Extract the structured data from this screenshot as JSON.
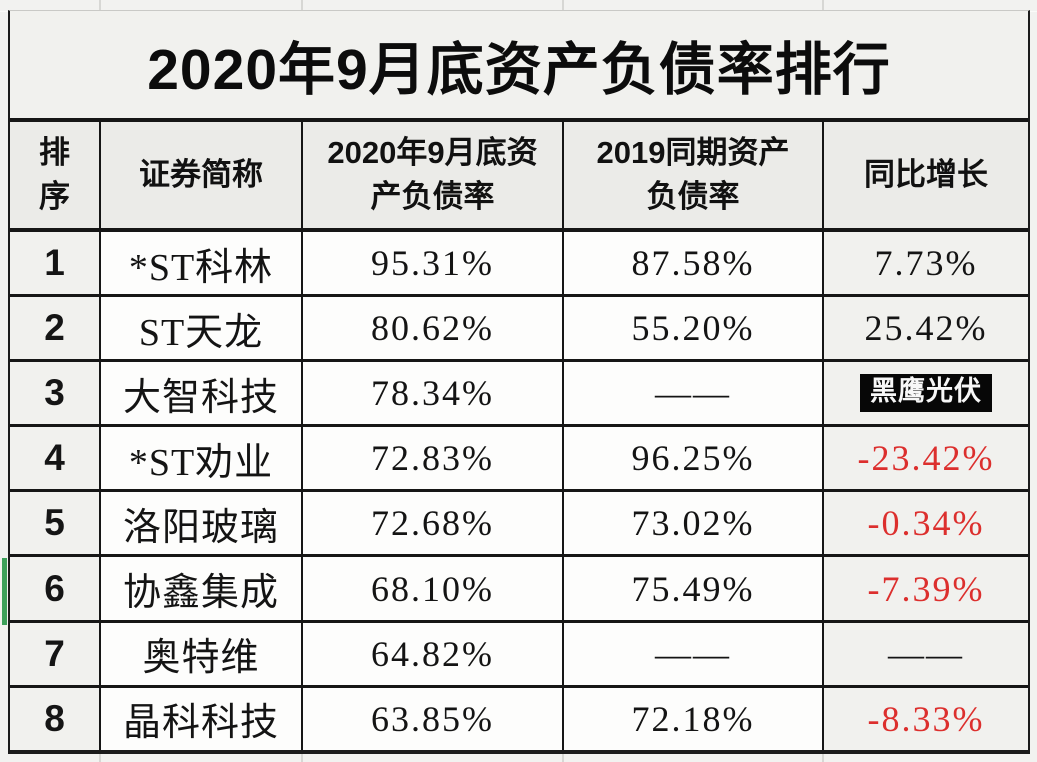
{
  "page": {
    "title": "2020年9月底资产负债率排行"
  },
  "chart_data": {
    "type": "table",
    "title": "2020年9月底资产负债率排行",
    "columns": [
      "排序",
      "证券简称",
      "2020年9月底资产负债率",
      "2019同期资产负债率",
      "同比增长"
    ],
    "rows": [
      {
        "rank": "1",
        "name": "*ST科林",
        "ratio_2020": "95.31%",
        "ratio_2019": "87.58%",
        "yoy": "7.73%",
        "yoy_badge": false
      },
      {
        "rank": "2",
        "name": "ST天龙",
        "ratio_2020": "80.62%",
        "ratio_2019": "55.20%",
        "yoy": "25.42%",
        "yoy_badge": false
      },
      {
        "rank": "3",
        "name": "大智科技",
        "ratio_2020": "78.34%",
        "ratio_2019": "——",
        "yoy": "",
        "yoy_badge": true
      },
      {
        "rank": "4",
        "name": "*ST劝业",
        "ratio_2020": "72.83%",
        "ratio_2019": "96.25%",
        "yoy": "-23.42%",
        "yoy_badge": false
      },
      {
        "rank": "5",
        "name": "洛阳玻璃",
        "ratio_2020": "72.68%",
        "ratio_2019": "73.02%",
        "yoy": "-0.34%",
        "yoy_badge": false
      },
      {
        "rank": "6",
        "name": "协鑫集成",
        "ratio_2020": "68.10%",
        "ratio_2019": "75.49%",
        "yoy": "-7.39%",
        "yoy_badge": false
      },
      {
        "rank": "7",
        "name": "奥特维",
        "ratio_2020": "64.82%",
        "ratio_2019": "——",
        "yoy": "——",
        "yoy_badge": false
      },
      {
        "rank": "8",
        "name": "晶科科技",
        "ratio_2020": "63.85%",
        "ratio_2019": "72.18%",
        "yoy": "-8.33%",
        "yoy_badge": false
      }
    ]
  },
  "watermark": {
    "label": "黑鹰光伏"
  },
  "colors": {
    "negative_value": "#dc2f2d",
    "positive_value": "#141414",
    "badge_bg": "#070707",
    "badge_text": "#f7f7f7",
    "selection_accent_green": "#3da05a",
    "grid_border": "#161616"
  }
}
